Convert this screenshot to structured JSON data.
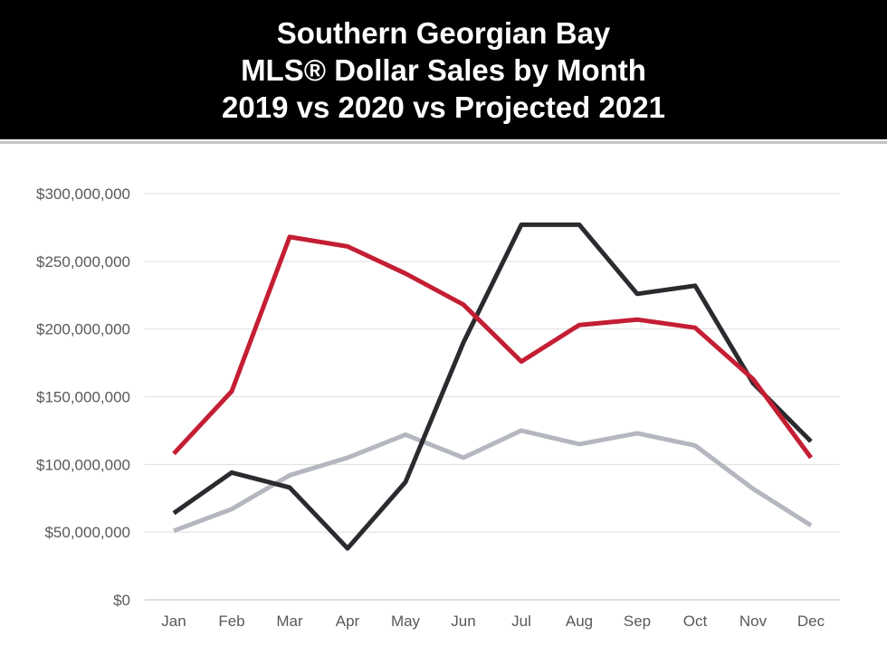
{
  "header": {
    "title_lines": [
      "Southern Georgian Bay",
      "MLS® Dollar Sales by Month",
      "2019 vs 2020 vs Projected 2021"
    ]
  },
  "chart_data": {
    "type": "line",
    "title": "Southern Georgian Bay MLS® Dollar Sales by Month 2019 vs 2020 vs Projected 2021",
    "categories": [
      "Jan",
      "Feb",
      "Mar",
      "Apr",
      "May",
      "Jun",
      "Jul",
      "Aug",
      "Sep",
      "Oct",
      "Nov",
      "Dec"
    ],
    "ylim": [
      0,
      300000000
    ],
    "yticks": [
      0,
      50000000,
      100000000,
      150000000,
      200000000,
      250000000,
      300000000
    ],
    "ytick_labels": [
      "$0",
      "$50,000,000",
      "$100,000,000",
      "$150,000,000",
      "$200,000,000",
      "$250,000,000",
      "$300,000,000"
    ],
    "grid": true,
    "legend": "none",
    "series": [
      {
        "color": "#b4b7bf",
        "values": [
          51000000,
          67000000,
          92000000,
          105000000,
          122000000,
          105000000,
          125000000,
          115000000,
          123000000,
          114000000,
          82000000,
          55000000
        ]
      },
      {
        "color": "#2b2b2f",
        "values": [
          64000000,
          94000000,
          83000000,
          38000000,
          87000000,
          190000000,
          277000000,
          277000000,
          226000000,
          232000000,
          160000000,
          117000000
        ]
      },
      {
        "color": "#c41e34",
        "values": [
          108000000,
          154000000,
          268000000,
          261000000,
          241000000,
          218000000,
          176000000,
          203000000,
          207000000,
          201000000,
          163000000,
          105000000
        ]
      }
    ]
  }
}
